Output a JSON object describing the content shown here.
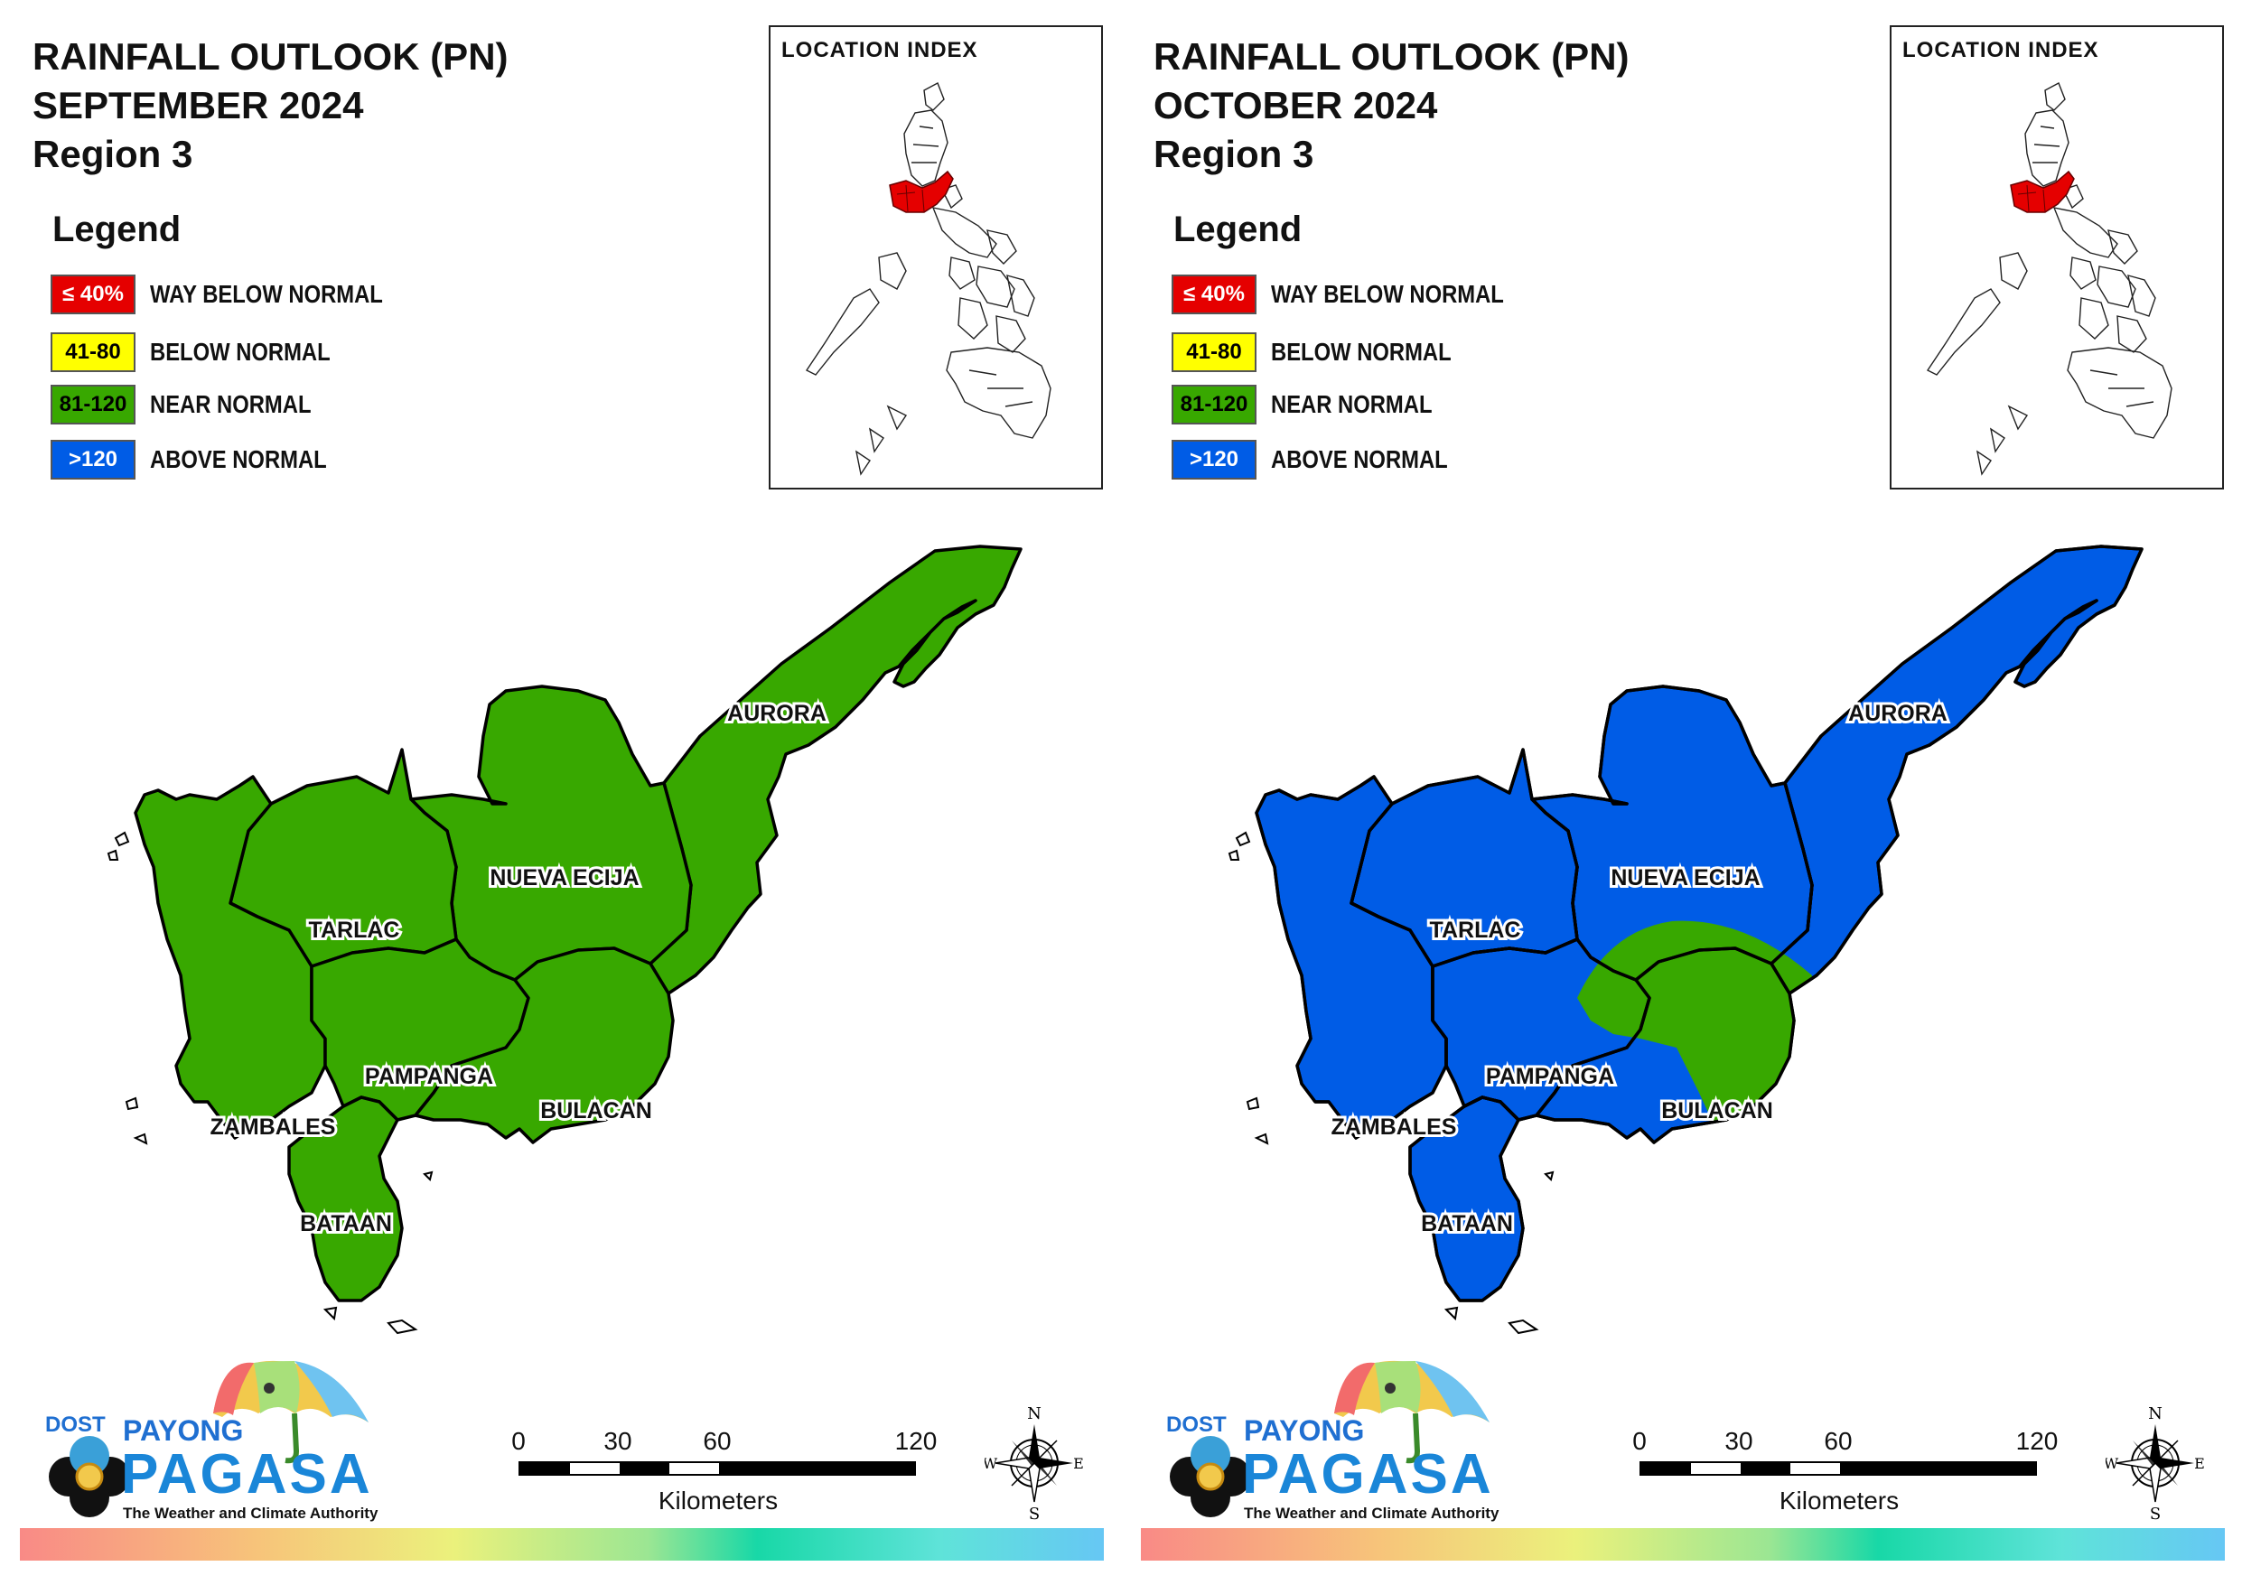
{
  "panels": [
    {
      "title_line1": "RAINFALL OUTLOOK (PN)",
      "title_line2": "SEPTEMBER 2024",
      "title_line3": "Region 3",
      "location_index_title": "LOCATION INDEX",
      "legend_title": "Legend",
      "legend": [
        {
          "range": "≤ 40%",
          "label": "WAY BELOW NORMAL",
          "color": "#e50000"
        },
        {
          "range": "41-80",
          "label": "BELOW NORMAL",
          "color": "#ffff00"
        },
        {
          "range": "81-120",
          "label": "NEAR NORMAL",
          "color": "#38a800"
        },
        {
          "range": ">120",
          "label": "ABOVE NORMAL",
          "color": "#005ce6"
        }
      ],
      "provinces": {
        "aurora": {
          "name": "AURORA",
          "category": "NEAR NORMAL"
        },
        "nueva_ecija": {
          "name": "NUEVA ECIJA",
          "category": "NEAR NORMAL"
        },
        "tarlac": {
          "name": "TARLAC",
          "category": "NEAR NORMAL"
        },
        "pampanga": {
          "name": "PAMPANGA",
          "category": "NEAR NORMAL"
        },
        "bulacan": {
          "name": "BULACAN",
          "category": "NEAR NORMAL"
        },
        "zambales": {
          "name": "ZAMBALES",
          "category": "NEAR NORMAL"
        },
        "bataan": {
          "name": "BATAAN",
          "category": "NEAR NORMAL"
        }
      },
      "base_color": "#38a800",
      "overlay_color": "",
      "scale": {
        "ticks": [
          "0",
          "30",
          "60",
          "120"
        ],
        "unit": "Kilometers"
      },
      "compass": {
        "n": "N",
        "s": "S",
        "e": "E",
        "w": "W"
      },
      "logo": {
        "dost": "DOST",
        "payong": "PAYONG",
        "pagasa": "PAGASA",
        "tagline": "The Weather and Climate Authority"
      }
    },
    {
      "title_line1": "RAINFALL OUTLOOK (PN)",
      "title_line2": "OCTOBER 2024",
      "title_line3": "Region 3",
      "location_index_title": "LOCATION INDEX",
      "legend_title": "Legend",
      "legend": [
        {
          "range": "≤ 40%",
          "label": "WAY BELOW NORMAL",
          "color": "#e50000"
        },
        {
          "range": "41-80",
          "label": "BELOW NORMAL",
          "color": "#ffff00"
        },
        {
          "range": "81-120",
          "label": "NEAR NORMAL",
          "color": "#38a800"
        },
        {
          "range": ">120",
          "label": "ABOVE NORMAL",
          "color": "#005ce6"
        }
      ],
      "provinces": {
        "aurora": {
          "name": "AURORA",
          "category": "ABOVE NORMAL"
        },
        "nueva_ecija": {
          "name": "NUEVA ECIJA",
          "category": "ABOVE NORMAL / NEAR NORMAL"
        },
        "tarlac": {
          "name": "TARLAC",
          "category": "ABOVE NORMAL"
        },
        "pampanga": {
          "name": "PAMPANGA",
          "category": "ABOVE NORMAL"
        },
        "bulacan": {
          "name": "BULACAN",
          "category": "ABOVE NORMAL / NEAR NORMAL"
        },
        "zambales": {
          "name": "ZAMBALES",
          "category": "ABOVE NORMAL"
        },
        "bataan": {
          "name": "BATAAN",
          "category": "ABOVE NORMAL"
        }
      },
      "base_color": "#005ce6",
      "overlay_color": "#38a800",
      "scale": {
        "ticks": [
          "0",
          "30",
          "60",
          "120"
        ],
        "unit": "Kilometers"
      },
      "compass": {
        "n": "N",
        "s": "S",
        "e": "E",
        "w": "W"
      },
      "logo": {
        "dost": "DOST",
        "payong": "PAYONG",
        "pagasa": "PAGASA",
        "tagline": "The Weather and Climate Authority"
      }
    }
  ]
}
